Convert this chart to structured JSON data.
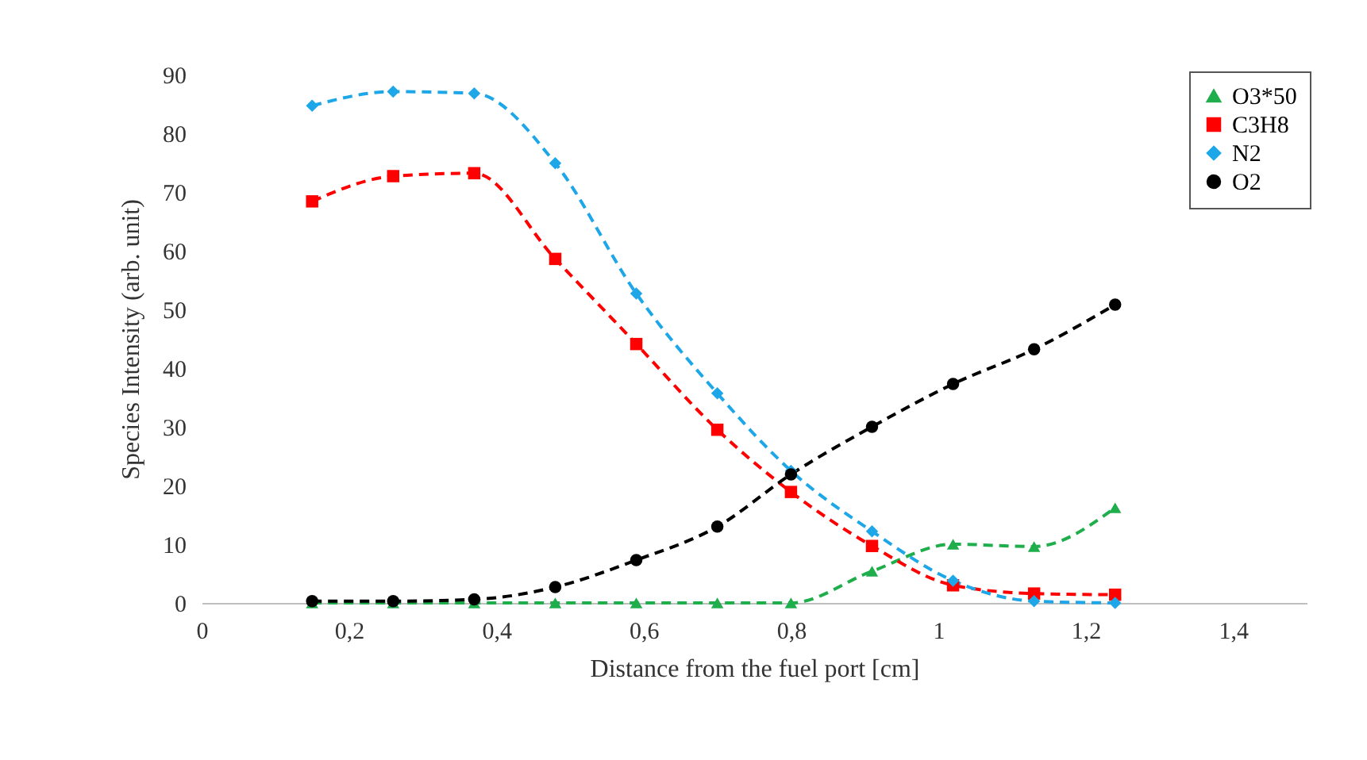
{
  "chart_data": {
    "type": "line",
    "xlabel": "Distance from the fuel port [cm]",
    "ylabel": "Species Intensity (arb. unit)",
    "x": [
      0.15,
      0.26,
      0.37,
      0.48,
      0.59,
      0.7,
      0.8,
      0.91,
      1.02,
      1.13,
      1.24
    ],
    "series": [
      {
        "name": "O3*50",
        "color": "#1fae4b",
        "marker": "triangle",
        "values": [
          0,
          0,
          0,
          0,
          0,
          0,
          0,
          5.4,
          10,
          9.6,
          16.2
        ]
      },
      {
        "name": "C3H8",
        "color": "#ff0000",
        "marker": "square",
        "values": [
          68.4,
          72.7,
          73.2,
          58.6,
          44.1,
          29.5,
          18.9,
          9.7,
          3,
          1.6,
          1.4
        ]
      },
      {
        "name": "N2",
        "color": "#1ea7e8",
        "marker": "diamond",
        "values": [
          84.7,
          87.1,
          86.8,
          74.9,
          52.7,
          35.7,
          22.5,
          12.2,
          3.8,
          0.3,
          0
        ]
      },
      {
        "name": "O2",
        "color": "#000000",
        "marker": "circle",
        "values": [
          0.3,
          0.3,
          0.6,
          2.7,
          7.3,
          13,
          21.9,
          30,
          37.3,
          43.2,
          50.8
        ]
      }
    ],
    "xlim": [
      0,
      1.5
    ],
    "ylim": [
      0,
      90
    ],
    "xticks": [
      0,
      {
        "value": 0.2,
        "label": "0,2"
      },
      {
        "value": 0.4,
        "label": "0,4"
      },
      {
        "value": 0.6,
        "label": "0,6"
      },
      {
        "value": 0.8,
        "label": "0,8"
      },
      1,
      {
        "value": 1.2,
        "label": "1,2"
      },
      {
        "value": 1.4,
        "label": "1,4"
      }
    ],
    "yticks": [
      0,
      10,
      20,
      30,
      40,
      50,
      60,
      70,
      80,
      90
    ],
    "grid": false,
    "legend": "top right",
    "line_style": "dashed"
  }
}
